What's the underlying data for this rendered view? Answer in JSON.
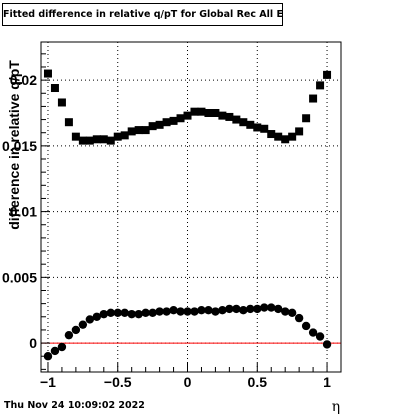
{
  "title": "Fitted difference in relative q/pT for Global Rec All EtapT",
  "timestamp": "Thu Nov 24 10:09:02 2022",
  "chart_data": {
    "type": "scatter",
    "title": "Fitted difference in relative q/pT for Global Rec All EtapT",
    "xlabel": "η",
    "ylabel": "difference in relative q/pT",
    "xlim": [
      -1.05,
      1.1
    ],
    "ylim": [
      -0.0022,
      0.0229
    ],
    "grid": true,
    "x_ticks": [
      {
        "value": -1,
        "label": "−1"
      },
      {
        "value": -0.5,
        "label": "−0.5"
      },
      {
        "value": 0,
        "label": "0"
      },
      {
        "value": 0.5,
        "label": "0.5"
      },
      {
        "value": 1,
        "label": "1"
      }
    ],
    "y_ticks": [
      {
        "value": 0,
        "label": "0"
      },
      {
        "value": 0.005,
        "label": "0.005"
      },
      {
        "value": 0.01,
        "label": "0.01"
      },
      {
        "value": 0.015,
        "label": "0.015"
      },
      {
        "value": 0.02,
        "label": "0.02"
      }
    ],
    "reference_line": {
      "y": 0,
      "color": "#ff0000"
    },
    "series": [
      {
        "marker": "square",
        "color": "#000000",
        "points": [
          [
            -1.0,
            0.0205
          ],
          [
            -0.95,
            0.0194
          ],
          [
            -0.9,
            0.0183
          ],
          [
            -0.85,
            0.0168
          ],
          [
            -0.8,
            0.0157
          ],
          [
            -0.75,
            0.0154
          ],
          [
            -0.7,
            0.0154
          ],
          [
            -0.65,
            0.0155
          ],
          [
            -0.6,
            0.0155
          ],
          [
            -0.55,
            0.0154
          ],
          [
            -0.5,
            0.0157
          ],
          [
            -0.45,
            0.0158
          ],
          [
            -0.4,
            0.0161
          ],
          [
            -0.35,
            0.0162
          ],
          [
            -0.3,
            0.0162
          ],
          [
            -0.25,
            0.0165
          ],
          [
            -0.2,
            0.0166
          ],
          [
            -0.15,
            0.0168
          ],
          [
            -0.1,
            0.0169
          ],
          [
            -0.05,
            0.0171
          ],
          [
            0.0,
            0.0173
          ],
          [
            0.05,
            0.0176
          ],
          [
            0.1,
            0.0176
          ],
          [
            0.15,
            0.0175
          ],
          [
            0.2,
            0.0175
          ],
          [
            0.25,
            0.0173
          ],
          [
            0.3,
            0.0172
          ],
          [
            0.35,
            0.017
          ],
          [
            0.4,
            0.0168
          ],
          [
            0.45,
            0.0166
          ],
          [
            0.5,
            0.0164
          ],
          [
            0.55,
            0.0163
          ],
          [
            0.6,
            0.0159
          ],
          [
            0.65,
            0.0157
          ],
          [
            0.7,
            0.0155
          ],
          [
            0.75,
            0.0157
          ],
          [
            0.8,
            0.0161
          ],
          [
            0.85,
            0.0171
          ],
          [
            0.9,
            0.0186
          ],
          [
            0.95,
            0.0196
          ],
          [
            1.0,
            0.0204
          ]
        ]
      },
      {
        "marker": "circle",
        "color": "#000000",
        "points": [
          [
            -1.0,
            -0.001
          ],
          [
            -0.95,
            -0.0006
          ],
          [
            -0.9,
            -0.0003
          ],
          [
            -0.85,
            0.0006
          ],
          [
            -0.8,
            0.001
          ],
          [
            -0.75,
            0.0014
          ],
          [
            -0.7,
            0.0018
          ],
          [
            -0.65,
            0.002
          ],
          [
            -0.6,
            0.0022
          ],
          [
            -0.55,
            0.0023
          ],
          [
            -0.5,
            0.0023
          ],
          [
            -0.45,
            0.0023
          ],
          [
            -0.4,
            0.0022
          ],
          [
            -0.35,
            0.0022
          ],
          [
            -0.3,
            0.0023
          ],
          [
            -0.25,
            0.0023
          ],
          [
            -0.2,
            0.0024
          ],
          [
            -0.15,
            0.0024
          ],
          [
            -0.1,
            0.0025
          ],
          [
            -0.05,
            0.0024
          ],
          [
            0.0,
            0.0024
          ],
          [
            0.05,
            0.0024
          ],
          [
            0.1,
            0.0025
          ],
          [
            0.15,
            0.0025
          ],
          [
            0.2,
            0.0024
          ],
          [
            0.25,
            0.0025
          ],
          [
            0.3,
            0.0026
          ],
          [
            0.35,
            0.0026
          ],
          [
            0.4,
            0.0025
          ],
          [
            0.45,
            0.0026
          ],
          [
            0.5,
            0.0026
          ],
          [
            0.55,
            0.0027
          ],
          [
            0.6,
            0.0027
          ],
          [
            0.65,
            0.0026
          ],
          [
            0.7,
            0.0024
          ],
          [
            0.75,
            0.0023
          ],
          [
            0.8,
            0.0019
          ],
          [
            0.85,
            0.0013
          ],
          [
            0.9,
            0.0008
          ],
          [
            0.95,
            0.0005
          ],
          [
            1.0,
            -0.0001
          ]
        ]
      }
    ]
  }
}
